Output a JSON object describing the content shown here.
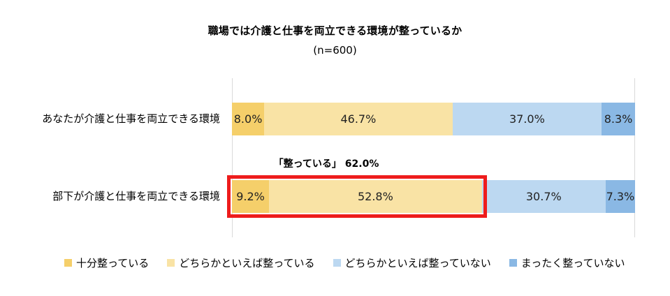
{
  "chart_data": {
    "type": "bar",
    "orientation": "horizontal-stacked-100",
    "title": "職場では介護と仕事を両立できる環境が整っているか",
    "subtitle": "(n=600)",
    "categories": [
      "あなたが介護と仕事を両立できる環境",
      "部下が介護と仕事を両立できる環境"
    ],
    "series": [
      {
        "name": "十分整っている",
        "values": [
          8.0,
          9.2
        ],
        "labels": [
          "8.0%",
          "9.2%"
        ],
        "color": "#f5cf6a"
      },
      {
        "name": "どちらかといえば整っている",
        "values": [
          46.7,
          52.8
        ],
        "labels": [
          "46.7%",
          "52.8%"
        ],
        "color": "#f9e3a5"
      },
      {
        "name": "どちらかといえば整っていない",
        "values": [
          37.0,
          30.7
        ],
        "labels": [
          "37.0%",
          "30.7%"
        ],
        "color": "#bcd8f1"
      },
      {
        "name": "まったく整っていない",
        "values": [
          8.3,
          7.3
        ],
        "labels": [
          "8.3%",
          "7.3%"
        ],
        "color": "#8ab8e4"
      }
    ],
    "annotation": "「整っている」 62.0%",
    "highlight_color": "#ee1c1c",
    "legend_position": "bottom",
    "grid": true
  }
}
